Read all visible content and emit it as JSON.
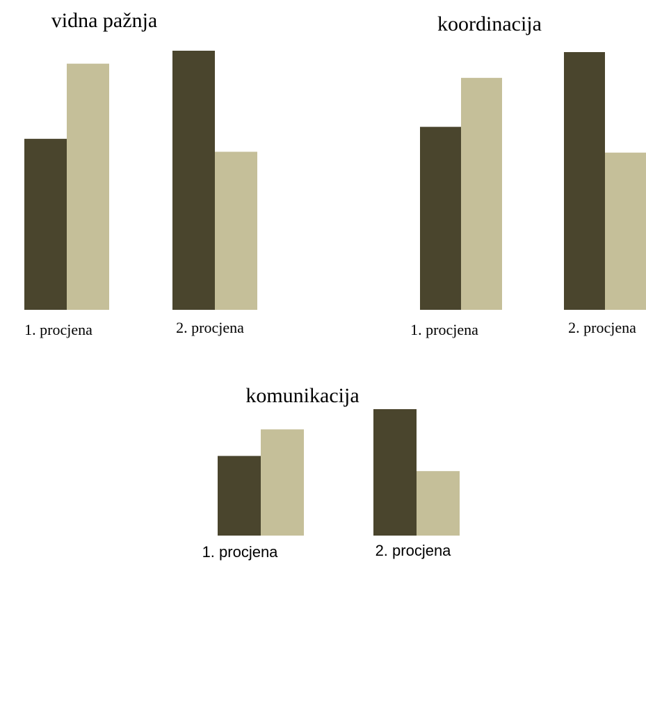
{
  "colors": {
    "dark": "#4a452d",
    "light": "#c5bf99"
  },
  "chart_data": [
    {
      "type": "bar",
      "title": "vidna pažnja",
      "categories": [
        "1. procjena",
        "2. procjena"
      ],
      "series": [
        {
          "values": [
            66,
            100
          ]
        },
        {
          "values": [
            95,
            61
          ]
        }
      ],
      "ylim": [
        0,
        100
      ],
      "grid": false
    },
    {
      "type": "bar",
      "title": "koordinacija",
      "categories": [
        "1. procjena",
        "2. procjena"
      ],
      "series": [
        {
          "values": [
            71,
            100
          ]
        },
        {
          "values": [
            90,
            61
          ]
        }
      ],
      "ylim": [
        0,
        100
      ],
      "grid": false
    },
    {
      "type": "bar",
      "title": "komunikacija",
      "categories": [
        "1. procjena",
        "2. procjena"
      ],
      "series": [
        {
          "values": [
            63,
            100
          ]
        },
        {
          "values": [
            84,
            51
          ]
        }
      ],
      "ylim": [
        0,
        100
      ],
      "grid": false
    }
  ]
}
